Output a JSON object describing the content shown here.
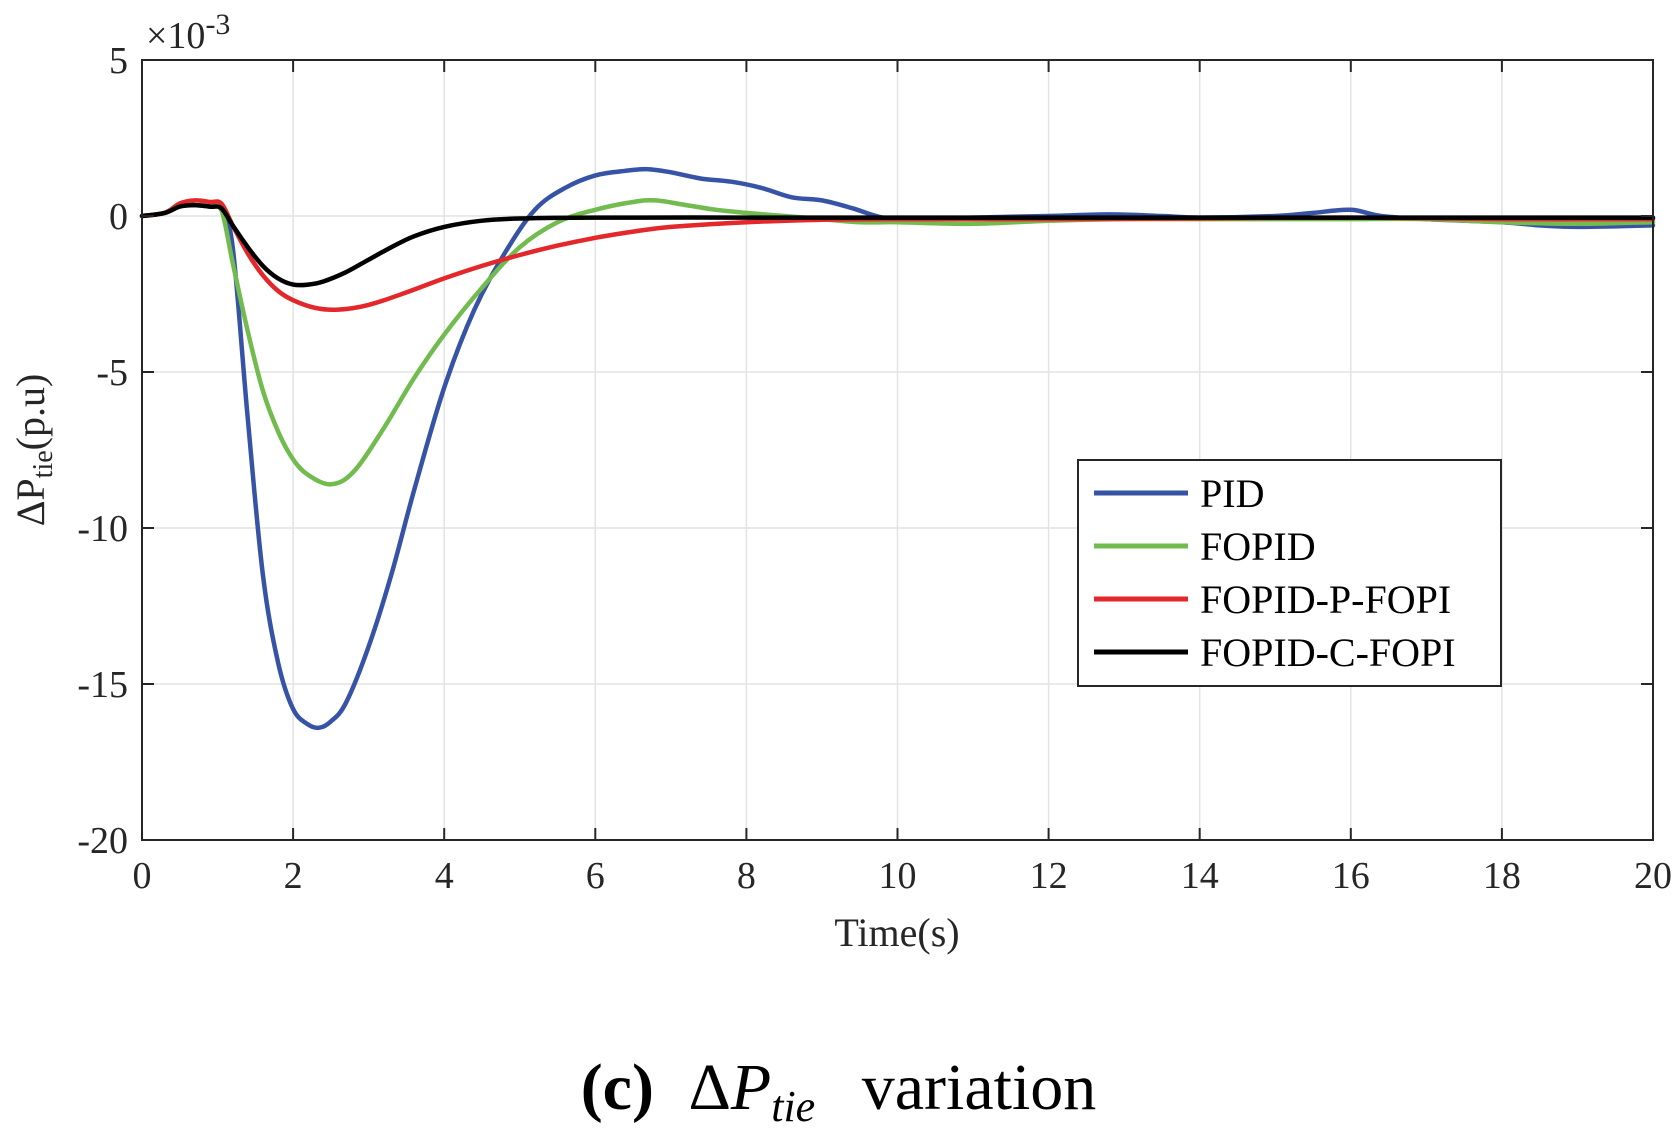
{
  "chart_data": {
    "type": "line",
    "title": "",
    "xlabel": "Time(s)",
    "ylabel": {
      "prefix": "ΔP",
      "subscript": "tie",
      "suffix": "(p.u)"
    },
    "exponent_label": {
      "base": "×10",
      "power": "-3"
    },
    "xlim": [
      0,
      20
    ],
    "ylim": [
      -20,
      5
    ],
    "xticks": [
      0,
      2,
      4,
      6,
      8,
      10,
      12,
      14,
      16,
      18,
      20
    ],
    "yticks": [
      5,
      0,
      -5,
      -10,
      -15,
      -20
    ],
    "grid": true,
    "legend_position": "right",
    "series": [
      {
        "name": "PID",
        "color": "#3653a5",
        "x": [
          0,
          0.3,
          0.5,
          0.7,
          0.9,
          1.05,
          1.2,
          1.4,
          1.6,
          1.8,
          2.0,
          2.2,
          2.35,
          2.5,
          2.7,
          3.0,
          3.3,
          3.6,
          4.0,
          4.4,
          4.8,
          5.2,
          5.6,
          6.0,
          6.4,
          6.7,
          7.0,
          7.4,
          7.8,
          8.2,
          8.6,
          9.0,
          9.4,
          9.8,
          10.2,
          11,
          12,
          12.8,
          13.5,
          14,
          15,
          15.5,
          16,
          16.4,
          17,
          18,
          18.5,
          19,
          20
        ],
        "y": [
          0,
          0.1,
          0.35,
          0.35,
          0.3,
          0.2,
          -1.0,
          -6.5,
          -11.5,
          -14.3,
          -15.8,
          -16.3,
          -16.4,
          -16.2,
          -15.6,
          -13.8,
          -11.5,
          -8.8,
          -5.5,
          -3.0,
          -1.2,
          0.2,
          0.9,
          1.3,
          1.45,
          1.5,
          1.4,
          1.2,
          1.1,
          0.9,
          0.6,
          0.5,
          0.25,
          -0.05,
          -0.1,
          -0.05,
          0.0,
          0.05,
          0.0,
          -0.05,
          0.0,
          0.1,
          0.2,
          0.0,
          -0.1,
          -0.2,
          -0.3,
          -0.35,
          -0.3
        ]
      },
      {
        "name": "FOPID",
        "color": "#72bb4f",
        "x": [
          0,
          0.3,
          0.5,
          0.7,
          0.9,
          1.05,
          1.2,
          1.4,
          1.6,
          1.8,
          2.0,
          2.2,
          2.5,
          2.8,
          3.2,
          3.6,
          4.0,
          4.5,
          5.0,
          5.5,
          6.0,
          6.5,
          6.8,
          7.2,
          7.6,
          8.0,
          8.5,
          9.0,
          9.5,
          10,
          11,
          12,
          13,
          14,
          15,
          16,
          17,
          18,
          19,
          20
        ],
        "y": [
          0,
          0.1,
          0.35,
          0.35,
          0.3,
          0.2,
          -1.5,
          -3.7,
          -5.6,
          -6.9,
          -7.8,
          -8.3,
          -8.6,
          -8.2,
          -6.8,
          -5.2,
          -3.8,
          -2.3,
          -1.0,
          -0.2,
          0.2,
          0.45,
          0.5,
          0.35,
          0.2,
          0.1,
          0.0,
          -0.1,
          -0.2,
          -0.2,
          -0.25,
          -0.15,
          -0.1,
          -0.1,
          -0.1,
          -0.1,
          -0.1,
          -0.2,
          -0.25,
          -0.2
        ]
      },
      {
        "name": "FOPID-P-FOPI",
        "color": "#e3272a",
        "x": [
          0,
          0.3,
          0.5,
          0.7,
          0.9,
          1.05,
          1.2,
          1.4,
          1.6,
          1.8,
          2.0,
          2.3,
          2.6,
          3.0,
          3.5,
          4.0,
          4.5,
          5.0,
          5.5,
          6.0,
          6.5,
          7.0,
          8.0,
          9.0,
          10,
          12,
          14,
          16,
          18,
          20
        ],
        "y": [
          0,
          0.1,
          0.4,
          0.5,
          0.45,
          0.4,
          -0.3,
          -1.2,
          -1.9,
          -2.4,
          -2.7,
          -2.95,
          -3.0,
          -2.85,
          -2.45,
          -2.0,
          -1.6,
          -1.25,
          -0.95,
          -0.7,
          -0.5,
          -0.35,
          -0.2,
          -0.12,
          -0.1,
          -0.1,
          -0.08,
          -0.05,
          -0.1,
          -0.1
        ]
      },
      {
        "name": "FOPID-C-FOPI",
        "color": "#000000",
        "x": [
          0,
          0.3,
          0.5,
          0.7,
          0.9,
          1.05,
          1.2,
          1.4,
          1.6,
          1.8,
          2.0,
          2.2,
          2.4,
          2.7,
          3.0,
          3.3,
          3.6,
          4.0,
          4.5,
          5.0,
          6.0,
          8.0,
          10,
          12,
          14,
          16,
          18,
          20
        ],
        "y": [
          0,
          0.1,
          0.3,
          0.35,
          0.3,
          0.25,
          -0.3,
          -1.0,
          -1.6,
          -2.0,
          -2.2,
          -2.2,
          -2.1,
          -1.8,
          -1.4,
          -1.0,
          -0.65,
          -0.35,
          -0.15,
          -0.08,
          -0.05,
          -0.05,
          -0.05,
          -0.05,
          -0.05,
          -0.05,
          -0.05,
          -0.05
        ]
      }
    ]
  },
  "caption": {
    "label": "(c)",
    "delta": "Δ",
    "var": "P",
    "sub": "tie",
    "word": "variation"
  }
}
